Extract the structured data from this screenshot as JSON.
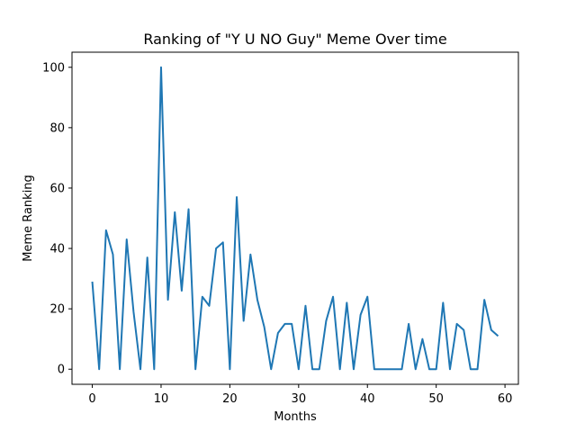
{
  "chart_data": {
    "type": "line",
    "title": "Ranking of \"Y U NO Guy\" Meme Over time",
    "xlabel": "Months",
    "ylabel": "Meme Ranking",
    "xlim": [
      -2.95,
      61.95
    ],
    "ylim": [
      -5,
      105
    ],
    "x_ticks": [
      0,
      10,
      20,
      30,
      40,
      50,
      60
    ],
    "y_ticks": [
      0,
      20,
      40,
      60,
      80,
      100
    ],
    "grid": false,
    "line_color": "#1f77b4",
    "series": [
      {
        "x": [
          0,
          1,
          2,
          3,
          4,
          5,
          6,
          7,
          8,
          9,
          10,
          11,
          12,
          13,
          14,
          15,
          16,
          17,
          18,
          19,
          20,
          21,
          22,
          23,
          24,
          25,
          26,
          27,
          28,
          29,
          30,
          31,
          32,
          33,
          34,
          35,
          36,
          37,
          38,
          39,
          40,
          41,
          42,
          43,
          44,
          45,
          46,
          47,
          48,
          49,
          50,
          51,
          52,
          53,
          54,
          55,
          56,
          57,
          58,
          59
        ],
        "values": [
          29,
          0,
          46,
          38,
          0,
          43,
          19,
          0,
          37,
          0,
          100,
          23,
          52,
          26,
          53,
          0,
          24,
          21,
          40,
          42,
          0,
          57,
          16,
          38,
          23,
          14,
          0,
          12,
          15,
          15,
          0,
          21,
          0,
          0,
          16,
          24,
          0,
          22,
          0,
          18,
          24,
          0,
          0,
          0,
          0,
          0,
          15,
          0,
          10,
          0,
          0,
          22,
          0,
          15,
          13,
          0,
          0,
          23,
          13,
          11
        ]
      }
    ]
  }
}
